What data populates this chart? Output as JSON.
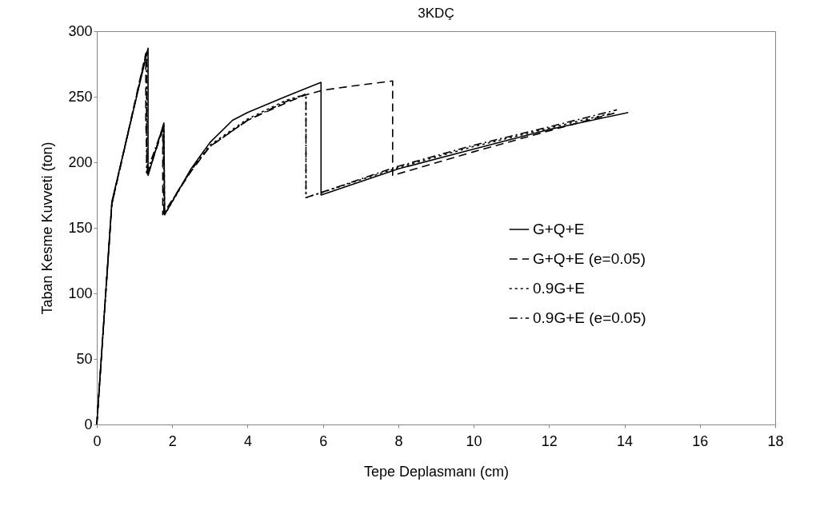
{
  "chart_data": {
    "type": "line",
    "title": "3KDÇ",
    "xlabel": "Tepe Deplasmanı (cm)",
    "ylabel": "Taban Kesme Kuvveti (ton)",
    "xlim": [
      0,
      18
    ],
    "xticks": [
      0,
      2,
      4,
      6,
      8,
      10,
      12,
      14,
      16,
      18
    ],
    "ylim": [
      0,
      300
    ],
    "yticks": [
      0,
      50,
      100,
      150,
      200,
      250,
      300
    ],
    "grid": false,
    "legend": "right",
    "marker": "none",
    "series": [
      {
        "name": "G+Q+E",
        "color": "#000000",
        "line_style": "solid",
        "x": [
          0,
          0.4,
          1.36,
          1.36,
          1.78,
          1.8,
          2.5,
          3,
          3.6,
          4,
          5,
          5.95,
          5.95,
          8,
          10,
          12,
          14.1
        ],
        "values": [
          0,
          170,
          287,
          190,
          230,
          160,
          195,
          215,
          232,
          238,
          250,
          261,
          175,
          195,
          210,
          225,
          238
        ]
      },
      {
        "name": "G+Q+E (e=0.05)",
        "color": "#000000",
        "line_style": "dashed",
        "x": [
          0,
          0.4,
          1.3,
          1.3,
          1.35,
          1.75,
          1.75,
          2.5,
          3,
          4,
          5,
          5.5,
          6,
          7,
          7.85,
          7.85,
          10,
          12,
          13.8
        ],
        "values": [
          0,
          168,
          283,
          230,
          190,
          225,
          160,
          193,
          212,
          232,
          245,
          251,
          255,
          259,
          262,
          190,
          208,
          224,
          238
        ]
      },
      {
        "name": "0.9G+E",
        "color": "#000000",
        "line_style": "dotted",
        "x": [
          0,
          0.4,
          1.33,
          1.33,
          1.78,
          1.8,
          2.5,
          3,
          4,
          5,
          5.55,
          5.55,
          8,
          10,
          12,
          13.6
        ],
        "values": [
          0,
          169,
          285,
          190,
          228,
          160,
          194,
          213,
          233,
          247,
          252,
          173,
          196,
          212,
          226,
          237
        ]
      },
      {
        "name": "0.9G+E (e=0.05)",
        "color": "#000000",
        "line_style": "dashdot",
        "x": [
          0,
          0.4,
          1.32,
          1.32,
          1.76,
          1.78,
          2.5,
          3,
          4,
          5,
          5.55,
          5.55,
          8,
          10,
          12,
          13.8
        ],
        "values": [
          0,
          168,
          284,
          192,
          227,
          161,
          194,
          212,
          232,
          246,
          252,
          173,
          197,
          213,
          227,
          240
        ]
      }
    ]
  }
}
